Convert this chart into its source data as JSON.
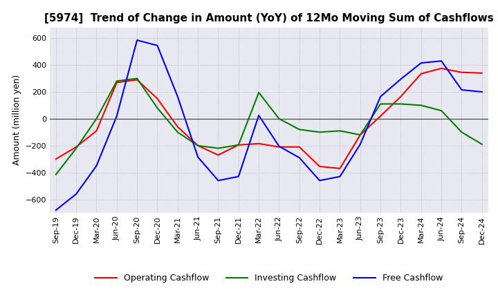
{
  "title": "[5974]  Trend of Change in Amount (YoY) of 12Mo Moving Sum of Cashflows",
  "ylabel": "Amount (million yen)",
  "ylim": [
    -700,
    680
  ],
  "yticks": [
    -600,
    -400,
    -200,
    0,
    200,
    400,
    600
  ],
  "x_labels": [
    "Sep-19",
    "Dec-19",
    "Mar-20",
    "Jun-20",
    "Sep-20",
    "Dec-20",
    "Mar-21",
    "Jun-21",
    "Sep-21",
    "Dec-21",
    "Mar-22",
    "Jun-22",
    "Sep-22",
    "Dec-22",
    "Mar-23",
    "Jun-23",
    "Sep-23",
    "Dec-23",
    "Mar-24",
    "Jun-24",
    "Sep-24",
    "Dec-24"
  ],
  "operating": [
    -300,
    -210,
    -90,
    270,
    290,
    150,
    -60,
    -200,
    -270,
    -195,
    -185,
    -210,
    -210,
    -355,
    -370,
    -120,
    20,
    165,
    335,
    375,
    345,
    340
  ],
  "investing": [
    -415,
    -220,
    0,
    280,
    300,
    80,
    -100,
    -200,
    -220,
    -195,
    195,
    0,
    -80,
    -100,
    -90,
    -120,
    110,
    110,
    100,
    60,
    -100,
    -190
  ],
  "free": [
    -680,
    -560,
    -350,
    20,
    585,
    545,
    165,
    -285,
    -460,
    -430,
    25,
    -205,
    -290,
    -460,
    -430,
    -190,
    165,
    295,
    415,
    430,
    215,
    200
  ],
  "operating_color": "#ff0000",
  "investing_color": "#008000",
  "free_color": "#0000ff",
  "background_color": "#e8e8f0",
  "grid_color": "#a0a0b0",
  "title_fontsize": 11,
  "legend_fontsize": 9,
  "axis_fontsize": 8
}
